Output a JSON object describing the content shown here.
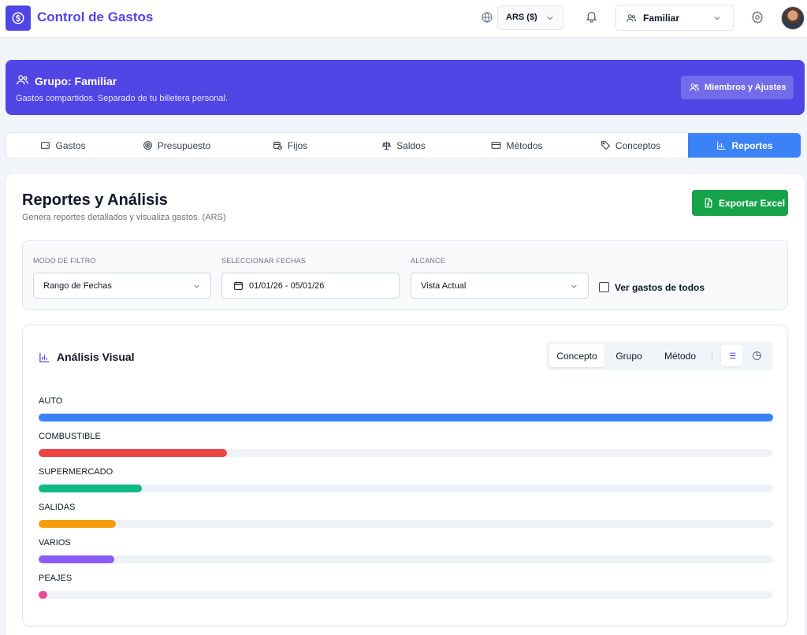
{
  "header": {
    "app_title": "Control de Gastos",
    "currency": "ARS ($)",
    "group": "Familiar"
  },
  "banner": {
    "title": "Grupo: Familiar",
    "subtitle": "Gastos compartidos. Separado de tu billetera personal.",
    "members_button": "Miembros y Ajustes"
  },
  "tabs": [
    {
      "label": "Gastos",
      "icon": "wallet-icon"
    },
    {
      "label": "Presupuesto",
      "icon": "target-icon"
    },
    {
      "label": "Fijos",
      "icon": "calendar-clock-icon"
    },
    {
      "label": "Saldos",
      "icon": "scale-icon"
    },
    {
      "label": "Métodos",
      "icon": "credit-card-icon"
    },
    {
      "label": "Conceptos",
      "icon": "tag-icon"
    },
    {
      "label": "Reportes",
      "icon": "bar-chart-icon",
      "active": true
    }
  ],
  "main": {
    "title": "Reportes y Análisis",
    "subtitle": "Genera reportes detallados y visualiza gastos. (ARS)",
    "export_button": "Exportar Excel"
  },
  "filters": {
    "mode_label": "MODO DE FILTRO",
    "mode_value": "Rango de Fechas",
    "dates_label": "SELECCIONAR FECHAS",
    "dates_value": "01/01/26 - 05/01/26",
    "scope_label": "ALCANCE",
    "scope_value": "Vista Actual",
    "see_all_label": "Ver gastos de todos",
    "see_all_checked": false
  },
  "analysis": {
    "title": "Análisis Visual",
    "segments": [
      "Concepto",
      "Grupo",
      "Método"
    ],
    "active_segment": "Concepto",
    "view_icons": [
      "list-icon",
      "pie-chart-icon"
    ],
    "active_view": "list-icon"
  },
  "chart_data": {
    "type": "bar",
    "categories": [
      "AUTO",
      "COMBUSTIBLE",
      "SUPERMERCADO",
      "SALIDAS",
      "VARIOS",
      "PEAJES"
    ],
    "values": [
      100,
      25.6,
      14.1,
      10.5,
      10.3,
      1.2
    ],
    "colors": [
      "#3b82f6",
      "#ef4444",
      "#10b981",
      "#f59e0b",
      "#8b5cf6",
      "#ec4899"
    ]
  },
  "colors": {
    "primary": "#4f46e5",
    "tab_active": "#3b82f6",
    "export": "#16a34a"
  }
}
